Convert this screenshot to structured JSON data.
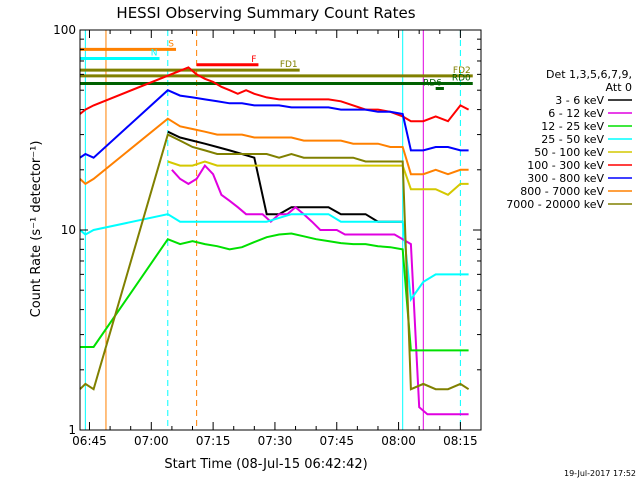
{
  "chart_data": {
    "type": "line",
    "title": "HESSI Observing Summary Count Rates",
    "xlabel": "Start Time (08-Jul-15 06:42:42)",
    "ylabel": "Count Rate (s⁻¹ detector⁻¹)",
    "yscale": "log",
    "ylim": [
      1,
      100
    ],
    "xlim": [
      "06:42:42",
      "08:20:00"
    ],
    "x_tick_labels": [
      "06:45",
      "07:00",
      "07:15",
      "07:30",
      "07:45",
      "08:00",
      "08:15"
    ],
    "y_tick_labels": [
      "1",
      "10",
      "100"
    ],
    "footer_date": "19-Jul-2017 17:52",
    "legend": {
      "header_lines": [
        "Det 1,3,5,6,7,9,",
        "Att 0"
      ],
      "placement": "right",
      "entries": [
        {
          "label": "3 - 6 keV",
          "color": "#000000"
        },
        {
          "label": "6 - 12 keV",
          "color": "#e000e0"
        },
        {
          "label": "12 - 25 keV",
          "color": "#00e000"
        },
        {
          "label": "25 - 50 keV",
          "color": "#00ffff"
        },
        {
          "label": "50 - 100 keV",
          "color": "#d4c800"
        },
        {
          "label": "100 - 300 keV",
          "color": "#ff0000"
        },
        {
          "label": "300 - 800 keV",
          "color": "#0000ff"
        },
        {
          "label": "800 - 7000 keV",
          "color": "#ff8000"
        },
        {
          "label": "7000 - 20000 keV",
          "color": "#808000"
        }
      ]
    },
    "series": [
      {
        "name": "3 - 6 keV",
        "color": "#000000",
        "x": [
          "07:04",
          "07:07",
          "07:10",
          "07:13",
          "07:16",
          "07:19",
          "07:22",
          "07:25",
          "07:28",
          "07:31",
          "07:34",
          "07:37",
          "07:40",
          "07:43",
          "07:46",
          "07:49",
          "07:52",
          "07:55",
          "07:58",
          "08:01"
        ],
        "values": [
          31,
          29,
          28,
          27,
          26,
          25,
          24,
          23,
          12,
          12,
          13,
          13,
          13,
          13,
          12,
          12,
          12,
          11,
          11,
          11
        ]
      },
      {
        "name": "6 - 12 keV",
        "color": "#e000e0",
        "x": [
          "07:05",
          "07:07",
          "07:09",
          "07:11",
          "07:13",
          "07:15",
          "07:17",
          "07:19",
          "07:21",
          "07:23",
          "07:25",
          "07:27",
          "07:29",
          "07:31",
          "07:33",
          "07:35",
          "07:37",
          "07:39",
          "07:41",
          "07:43",
          "07:45",
          "07:47",
          "07:49",
          "07:51",
          "07:53",
          "07:55",
          "07:57",
          "07:59",
          "08:01",
          "08:03",
          "08:05",
          "08:07",
          "08:09",
          "08:11",
          "08:13",
          "08:15",
          "08:17"
        ],
        "values": [
          20,
          18,
          17,
          18,
          21,
          19,
          15,
          14,
          13,
          12,
          12,
          12,
          11,
          12,
          12,
          13,
          12,
          11,
          10,
          10,
          10,
          9.5,
          9.5,
          9.5,
          9.5,
          9.5,
          9.5,
          9.5,
          9,
          8.5,
          1.3,
          1.2,
          1.2,
          1.2,
          1.2,
          1.2,
          1.2
        ]
      },
      {
        "name": "12 - 25 keV",
        "color": "#00e000",
        "x": [
          "06:42:42",
          "06:44",
          "06:46",
          "07:04",
          "07:07",
          "07:10",
          "07:13",
          "07:16",
          "07:19",
          "07:22",
          "07:25",
          "07:28",
          "07:31",
          "07:34",
          "07:37",
          "07:40",
          "07:43",
          "07:46",
          "07:49",
          "07:52",
          "07:55",
          "07:58",
          "08:01",
          "08:03",
          "08:06",
          "08:09",
          "08:12",
          "08:15",
          "08:17"
        ],
        "values": [
          2.6,
          2.6,
          2.6,
          9.0,
          8.5,
          8.8,
          8.5,
          8.3,
          8.0,
          8.2,
          8.7,
          9.2,
          9.5,
          9.6,
          9.3,
          9.0,
          8.8,
          8.6,
          8.5,
          8.5,
          8.3,
          8.2,
          8.0,
          2.5,
          2.5,
          2.5,
          2.5,
          2.5,
          2.5
        ]
      },
      {
        "name": "25 - 50 keV",
        "color": "#00ffff",
        "x": [
          "06:42:42",
          "06:44",
          "06:46",
          "07:04",
          "07:07",
          "07:10",
          "07:13",
          "07:16",
          "07:19",
          "07:22",
          "07:25",
          "07:28",
          "07:31",
          "07:34",
          "07:37",
          "07:40",
          "07:43",
          "07:46",
          "07:49",
          "07:52",
          "07:55",
          "07:58",
          "08:01",
          "08:03",
          "08:06",
          "08:09",
          "08:12",
          "08:15",
          "08:17"
        ],
        "values": [
          10,
          9.5,
          10,
          12,
          11,
          11,
          11,
          11,
          11,
          11,
          11,
          11,
          11.5,
          12,
          12,
          12,
          12,
          11,
          11,
          11,
          11,
          11,
          11,
          4.5,
          5.5,
          6,
          6,
          6,
          6
        ]
      },
      {
        "name": "50 - 100 keV",
        "color": "#d4c800",
        "x": [
          "07:04",
          "07:07",
          "07:10",
          "07:13",
          "07:16",
          "07:19",
          "07:22",
          "07:25",
          "07:28",
          "07:31",
          "07:34",
          "07:37",
          "07:40",
          "07:43",
          "07:46",
          "07:49",
          "07:52",
          "07:55",
          "07:58",
          "08:01",
          "08:03",
          "08:06",
          "08:09",
          "08:12",
          "08:15",
          "08:17"
        ],
        "values": [
          22,
          21,
          21,
          22,
          21,
          21,
          21,
          21,
          21,
          21,
          21,
          21,
          21,
          21,
          21,
          21,
          21,
          21,
          21,
          21,
          16,
          16,
          16,
          15,
          17,
          17
        ]
      },
      {
        "name": "100 - 300 keV",
        "color": "#ff0000",
        "x": [
          "06:42:42",
          "06:44",
          "06:46",
          "07:09",
          "07:11",
          "07:13",
          "07:15",
          "07:17",
          "07:19",
          "07:21",
          "07:23",
          "07:25",
          "07:28",
          "07:31",
          "07:34",
          "07:37",
          "07:40",
          "07:43",
          "07:46",
          "07:49",
          "07:52",
          "07:55",
          "07:58",
          "08:01",
          "08:03",
          "08:06",
          "08:09",
          "08:12",
          "08:15",
          "08:17"
        ],
        "values": [
          38,
          40,
          42,
          65,
          60,
          57,
          55,
          52,
          50,
          48,
          50,
          48,
          46,
          45,
          45,
          45,
          45,
          45,
          44,
          42,
          40,
          40,
          39,
          37,
          35,
          35,
          37,
          35,
          42,
          40
        ]
      },
      {
        "name": "300 - 800 keV",
        "color": "#0000ff",
        "x": [
          "06:42:42",
          "06:44",
          "06:46",
          "07:04",
          "07:07",
          "07:10",
          "07:13",
          "07:16",
          "07:19",
          "07:22",
          "07:25",
          "07:28",
          "07:31",
          "07:34",
          "07:37",
          "07:40",
          "07:43",
          "07:46",
          "07:49",
          "07:52",
          "07:55",
          "07:58",
          "08:01",
          "08:03",
          "08:06",
          "08:09",
          "08:12",
          "08:15",
          "08:17"
        ],
        "values": [
          23,
          24,
          23,
          50,
          47,
          46,
          45,
          44,
          43,
          43,
          42,
          42,
          42,
          41,
          41,
          41,
          41,
          40,
          40,
          40,
          39,
          39,
          38,
          25,
          25,
          26,
          26,
          25,
          25
        ]
      },
      {
        "name": "800 - 7000 keV",
        "color": "#ff8000",
        "x": [
          "06:42:42",
          "06:44",
          "06:46",
          "07:04",
          "07:07",
          "07:10",
          "07:13",
          "07:16",
          "07:19",
          "07:22",
          "07:25",
          "07:28",
          "07:31",
          "07:34",
          "07:37",
          "07:40",
          "07:43",
          "07:46",
          "07:49",
          "07:52",
          "07:55",
          "07:58",
          "08:01",
          "08:03",
          "08:06",
          "08:09",
          "08:12",
          "08:15",
          "08:17"
        ],
        "values": [
          18,
          17,
          18,
          36,
          33,
          32,
          31,
          30,
          30,
          30,
          29,
          29,
          29,
          29,
          28,
          28,
          28,
          28,
          27,
          27,
          27,
          26,
          26,
          19,
          19,
          20,
          19,
          20,
          20
        ]
      },
      {
        "name": "7000 - 20000 keV",
        "color": "#808000",
        "x": [
          "06:42:42",
          "06:44",
          "06:46",
          "07:04",
          "07:07",
          "07:10",
          "07:13",
          "07:16",
          "07:19",
          "07:22",
          "07:25",
          "07:28",
          "07:31",
          "07:34",
          "07:37",
          "07:40",
          "07:43",
          "07:46",
          "07:49",
          "07:52",
          "07:55",
          "07:58",
          "08:01",
          "08:03",
          "08:06",
          "08:09",
          "08:12",
          "08:15",
          "08:17"
        ],
        "values": [
          1.6,
          1.7,
          1.6,
          30,
          28,
          26,
          25,
          24,
          24,
          24,
          24,
          24,
          23,
          24,
          23,
          23,
          23,
          23,
          23,
          22,
          22,
          22,
          22,
          1.6,
          1.7,
          1.6,
          1.6,
          1.7,
          1.6
        ]
      }
    ],
    "annotations": [
      {
        "label": "S",
        "color": "#ff8000",
        "from": "06:42:42",
        "to": "07:06",
        "value": 80
      },
      {
        "label": "N",
        "color": "#00ffff",
        "from": "06:42:42",
        "to": "07:02",
        "value": 72
      },
      {
        "label": "F",
        "color": "#ff0000",
        "from": "07:11",
        "to": "07:26",
        "value": 67
      },
      {
        "label": "FD1",
        "color": "#808000",
        "from": "06:42:42",
        "to": "07:36",
        "value": 63
      },
      {
        "label": "FD2",
        "color": "#808000",
        "from": "06:42:42",
        "to": "08:18",
        "value": 59
      },
      {
        "label": "RD6",
        "color": "#006000",
        "from": "08:09",
        "to": "08:11",
        "value": 51
      },
      {
        "label": "RD0",
        "color": "#006000",
        "from": "06:42:42",
        "to": "08:18",
        "value": 54
      }
    ],
    "vertical_markers": [
      {
        "x": "06:44",
        "color": "#00ffff",
        "style": "solid"
      },
      {
        "x": "06:49",
        "color": "#ff8000",
        "style": "solid"
      },
      {
        "x": "07:04",
        "color": "#00ffff",
        "style": "dashed"
      },
      {
        "x": "07:11",
        "color": "#ff8000",
        "style": "dashed"
      },
      {
        "x": "08:01",
        "color": "#00ffff",
        "style": "solid"
      },
      {
        "x": "08:06",
        "color": "#e000e0",
        "style": "solid"
      },
      {
        "x": "08:15",
        "color": "#00ffff",
        "style": "dashed"
      }
    ],
    "grid": false
  }
}
